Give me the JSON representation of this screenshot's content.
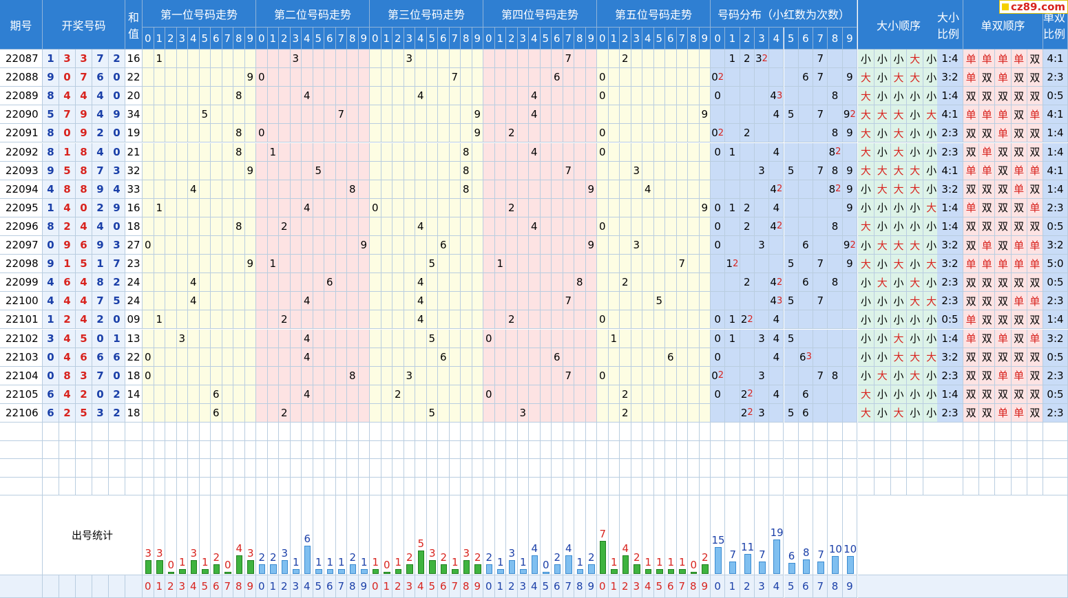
{
  "logo": {
    "text": "cz89.com"
  },
  "header": {
    "period": "期号",
    "draw": "开奖号码",
    "sum": "和值",
    "pos_titles": [
      "第一位号码走势",
      "第二位号码走势",
      "第三位号码走势",
      "第四位号码走势",
      "第五位号码走势"
    ],
    "dist_title": "号码分布（小红数为次数）",
    "bs_order": "大小顺序",
    "bs_ratio": "大小比例",
    "oe_order": "单双顺序",
    "oe_ratio": "单双比例"
  },
  "digits": [
    "0",
    "1",
    "2",
    "3",
    "4",
    "5",
    "6",
    "7",
    "8",
    "9"
  ],
  "chart_data": {
    "type": "table",
    "rows": [
      {
        "period": "22087",
        "nums": [
          1,
          3,
          3,
          7,
          2
        ],
        "sum": "16"
      },
      {
        "period": "22088",
        "nums": [
          9,
          0,
          7,
          6,
          0
        ],
        "sum": "22"
      },
      {
        "period": "22089",
        "nums": [
          8,
          4,
          4,
          4,
          0
        ],
        "sum": "20"
      },
      {
        "period": "22090",
        "nums": [
          5,
          7,
          9,
          4,
          9
        ],
        "sum": "34"
      },
      {
        "period": "22091",
        "nums": [
          8,
          0,
          9,
          2,
          0
        ],
        "sum": "19"
      },
      {
        "period": "22092",
        "nums": [
          8,
          1,
          8,
          4,
          0
        ],
        "sum": "21"
      },
      {
        "period": "22093",
        "nums": [
          9,
          5,
          8,
          7,
          3
        ],
        "sum": "32"
      },
      {
        "period": "22094",
        "nums": [
          4,
          8,
          8,
          9,
          4
        ],
        "sum": "33"
      },
      {
        "period": "22095",
        "nums": [
          1,
          4,
          0,
          2,
          9
        ],
        "sum": "16"
      },
      {
        "period": "22096",
        "nums": [
          8,
          2,
          4,
          4,
          0
        ],
        "sum": "18"
      },
      {
        "period": "22097",
        "nums": [
          0,
          9,
          6,
          9,
          3
        ],
        "sum": "27"
      },
      {
        "period": "22098",
        "nums": [
          9,
          1,
          5,
          1,
          7
        ],
        "sum": "23"
      },
      {
        "period": "22099",
        "nums": [
          4,
          6,
          4,
          8,
          2
        ],
        "sum": "24"
      },
      {
        "period": "22100",
        "nums": [
          4,
          4,
          4,
          7,
          5
        ],
        "sum": "24"
      },
      {
        "period": "22101",
        "nums": [
          1,
          2,
          4,
          2,
          0
        ],
        "sum": "09"
      },
      {
        "period": "22102",
        "nums": [
          3,
          4,
          5,
          0,
          1
        ],
        "sum": "13"
      },
      {
        "period": "22103",
        "nums": [
          0,
          4,
          6,
          6,
          6
        ],
        "sum": "22"
      },
      {
        "period": "22104",
        "nums": [
          0,
          8,
          3,
          7,
          0
        ],
        "sum": "18"
      },
      {
        "period": "22105",
        "nums": [
          6,
          4,
          2,
          0,
          2
        ],
        "sum": "14"
      },
      {
        "period": "22106",
        "nums": [
          6,
          2,
          5,
          3,
          2
        ],
        "sum": "18"
      }
    ],
    "big_label": "大",
    "small_label": "小",
    "odd_label": "单",
    "even_label": "双",
    "stats_label": "出号统计",
    "pos_counts": [
      [
        3,
        3,
        0,
        1,
        3,
        1,
        2,
        0,
        4,
        3
      ],
      [
        2,
        2,
        3,
        1,
        6,
        1,
        1,
        1,
        2,
        1
      ],
      [
        1,
        0,
        1,
        2,
        5,
        3,
        2,
        1,
        3,
        2
      ],
      [
        2,
        1,
        3,
        1,
        4,
        0,
        2,
        4,
        1,
        2
      ],
      [
        7,
        1,
        4,
        2,
        1,
        1,
        1,
        1,
        0,
        2
      ]
    ],
    "dist_counts": [
      15,
      7,
      11,
      7,
      19,
      6,
      8,
      7,
      10,
      10
    ]
  }
}
